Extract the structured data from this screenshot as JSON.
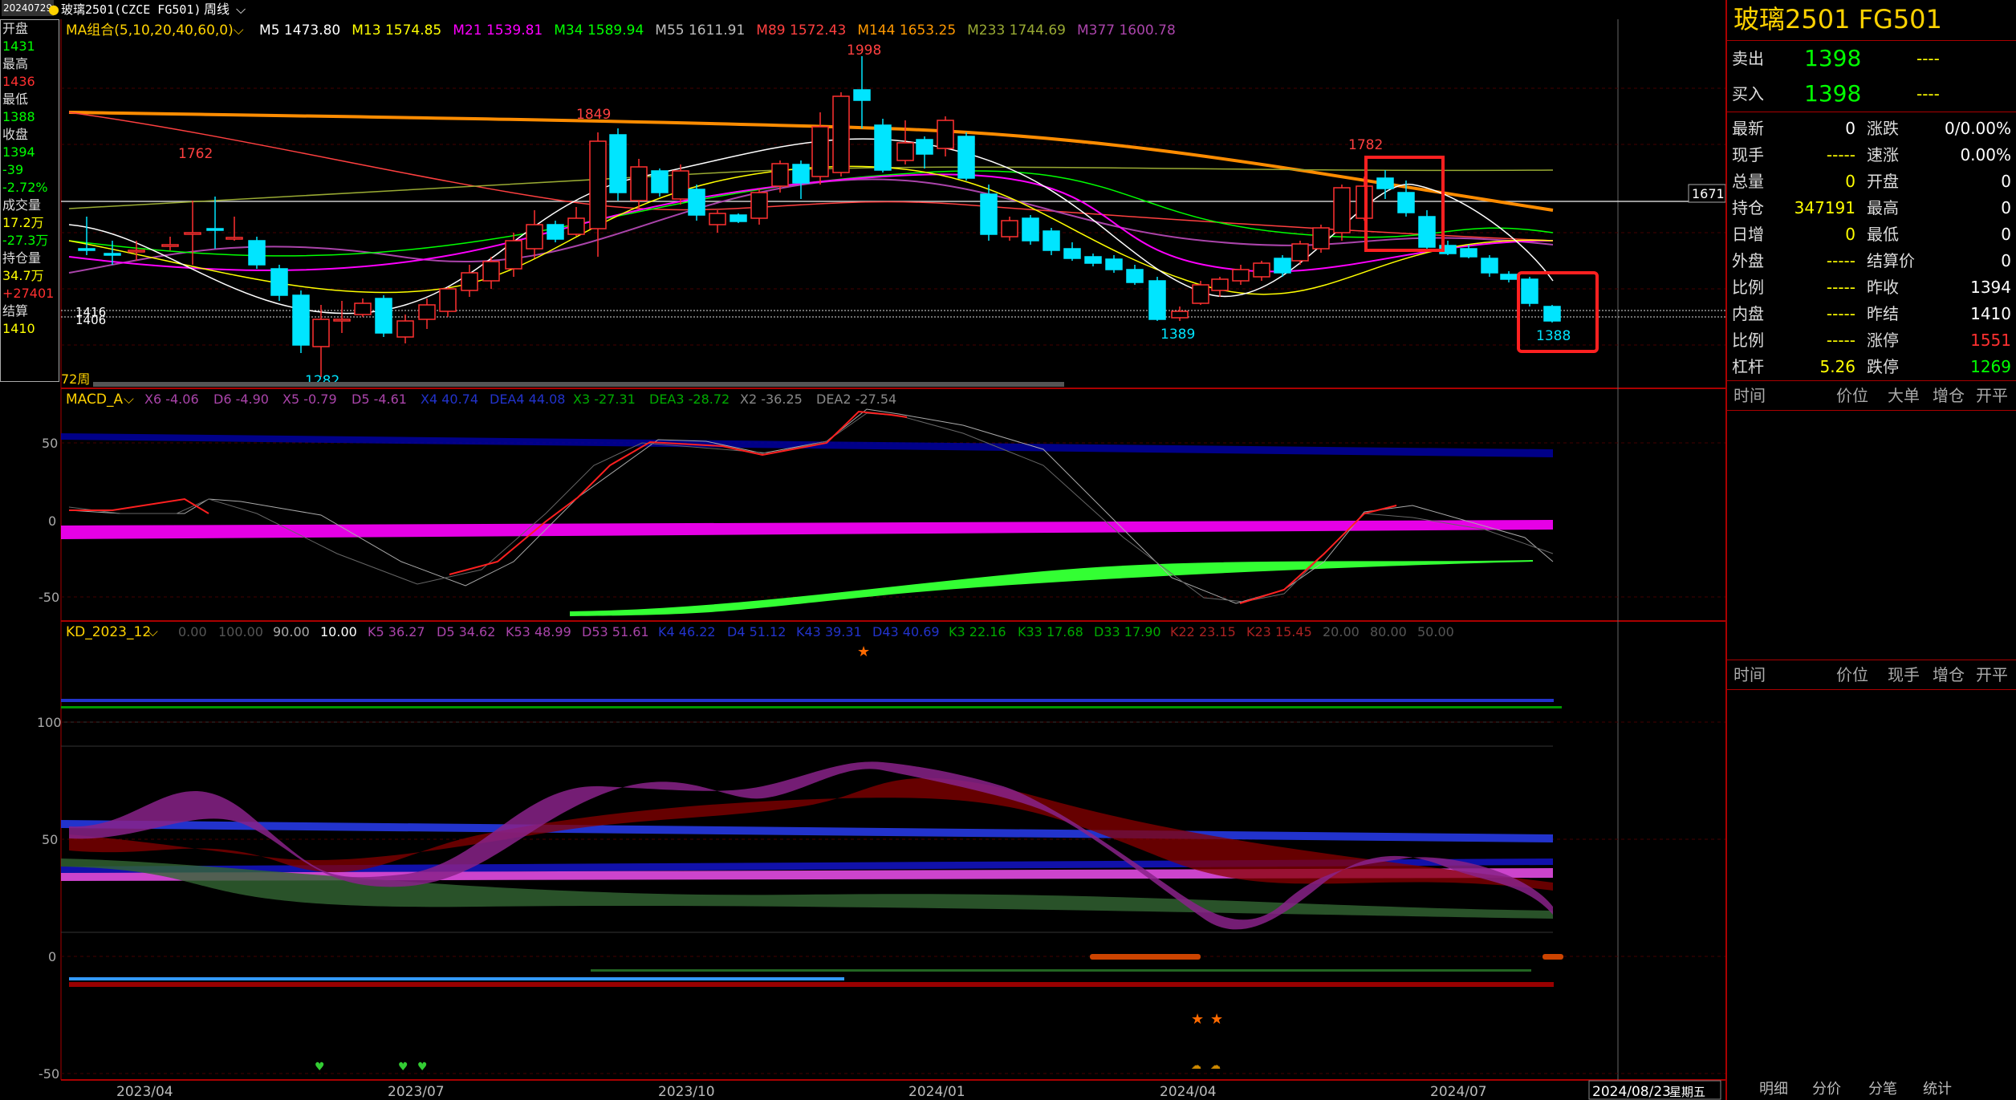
{
  "topbar": {
    "date_chip": "20240729",
    "contract": "玻璃2501(CZCE FG501)",
    "period": "周线",
    "ma_group": "MA组合(5,10,20,40,60,0)",
    "ma_values": [
      {
        "label": "M5 1473.80",
        "color": "#ffffff"
      },
      {
        "label": "M13 1574.85",
        "color": "#ffff00"
      },
      {
        "label": "M21 1539.81",
        "color": "#ff00ff"
      },
      {
        "label": "M34 1589.94",
        "color": "#00ff00"
      },
      {
        "label": "M55 1611.91",
        "color": "#bbbbbb"
      },
      {
        "label": "M89 1572.43",
        "color": "#ff4040"
      },
      {
        "label": "M144 1653.25",
        "color": "#ff9900"
      },
      {
        "label": "M233 1744.69",
        "color": "#99aa33"
      },
      {
        "label": "M377 1600.78",
        "color": "#aa44aa"
      }
    ]
  },
  "left_panel": [
    {
      "label": "开盘",
      "value": "1431",
      "color": "#00ff00"
    },
    {
      "label": "最高",
      "value": "1436",
      "color": "#ff3030"
    },
    {
      "label": "最低",
      "value": "1388",
      "color": "#00ff00"
    },
    {
      "label": "收盘",
      "value": "1394",
      "color": "#00ff00"
    },
    {
      "label": "",
      "value": "-39",
      "color": "#00ff00"
    },
    {
      "label": "",
      "value": "-2.72%",
      "color": "#00ff00"
    },
    {
      "label": "成交量",
      "value": "17.2万",
      "color": "#ffff00"
    },
    {
      "label": "",
      "value": "-27.3万",
      "color": "#00ff00"
    },
    {
      "label": "持仓量",
      "value": "34.7万",
      "color": "#ffff00"
    },
    {
      "label": "",
      "value": "+27401",
      "color": "#ff3030"
    },
    {
      "label": "结算",
      "value": "1410",
      "color": "#ffff00"
    }
  ],
  "price_chart": {
    "y_marker": "1671",
    "current_price_label_a": "1416",
    "current_price_label_b": "1406",
    "period_label": "72周",
    "annotations": [
      {
        "text": "1762",
        "color": "#ff4040"
      },
      {
        "text": "1849",
        "color": "#ff4040"
      },
      {
        "text": "1998",
        "color": "#ff4040"
      },
      {
        "text": "1782",
        "color": "#ff4040"
      },
      {
        "text": "1282",
        "color": "#00e5ff"
      },
      {
        "text": "1389",
        "color": "#00e5ff"
      },
      {
        "text": "1388",
        "color": "#00e5ff"
      }
    ]
  },
  "macd": {
    "title": "MACD_A",
    "legend": [
      {
        "label": "X6 -4.06",
        "color": "#aa44aa"
      },
      {
        "label": "D6 -4.90",
        "color": "#aa44aa"
      },
      {
        "label": "X5 -0.79",
        "color": "#aa44aa"
      },
      {
        "label": "D5 -4.61",
        "color": "#aa44aa"
      },
      {
        "label": "X4 40.74",
        "color": "#2233cc"
      },
      {
        "label": "DEA4 44.08",
        "color": "#2233cc"
      },
      {
        "label": "X3 -27.31",
        "color": "#00aa00"
      },
      {
        "label": "DEA3 -28.72",
        "color": "#00aa00"
      },
      {
        "label": "X2 -36.25",
        "color": "#888888"
      },
      {
        "label": "DEA2 -27.54",
        "color": "#888888"
      }
    ],
    "ticks": [
      "50",
      "0",
      "-50"
    ]
  },
  "kd": {
    "title": "KD_2023_12",
    "legend": [
      {
        "label": "0.00",
        "color": "#555555"
      },
      {
        "label": "100.00",
        "color": "#555555"
      },
      {
        "label": "90.00",
        "color": "#aaaaaa"
      },
      {
        "label": "10.00",
        "color": "#ffffff"
      },
      {
        "label": "K5 36.27",
        "color": "#aa44aa"
      },
      {
        "label": "D5 34.62",
        "color": "#aa44aa"
      },
      {
        "label": "K53 48.99",
        "color": "#aa44aa"
      },
      {
        "label": "D53 51.61",
        "color": "#aa44aa"
      },
      {
        "label": "K4 46.22",
        "color": "#2233cc"
      },
      {
        "label": "D4 51.12",
        "color": "#2233cc"
      },
      {
        "label": "K43 39.31",
        "color": "#2233cc"
      },
      {
        "label": "D43 40.69",
        "color": "#2233cc"
      },
      {
        "label": "K3 22.16",
        "color": "#00aa00"
      },
      {
        "label": "K33 17.68",
        "color": "#00aa00"
      },
      {
        "label": "D33 17.90",
        "color": "#00aa00"
      },
      {
        "label": "K22 23.15",
        "color": "#aa2222"
      },
      {
        "label": "K23 15.45",
        "color": "#aa2222"
      },
      {
        "label": "20.00",
        "color": "#555555"
      },
      {
        "label": "80.00",
        "color": "#555555"
      },
      {
        "label": "50.00",
        "color": "#555555"
      }
    ],
    "ticks": [
      "100",
      "50",
      "0",
      "-50"
    ]
  },
  "date_axis": {
    "labels": [
      "2023/04",
      "2023/07",
      "2023/10",
      "2024/01",
      "2024/04",
      "2024/07"
    ],
    "cursor_date": "2024/08/23",
    "cursor_weekday": "星期五"
  },
  "right_panel": {
    "title": "玻璃2501  FG501",
    "sell": {
      "label": "卖出",
      "price": "1398",
      "vol": "----"
    },
    "buy": {
      "label": "买入",
      "price": "1398",
      "vol": "----"
    },
    "rows": [
      {
        "l1": "最新",
        "v1": "0",
        "c1": "#ffffff",
        "l2": "涨跌",
        "v2": "0/0.00%",
        "c2": "#ffffff"
      },
      {
        "l1": "现手",
        "v1": "-----",
        "c1": "#ffff00",
        "l2": "速涨",
        "v2": "0.00%",
        "c2": "#ffffff"
      },
      {
        "l1": "总量",
        "v1": "0",
        "c1": "#ffff00",
        "l2": "开盘",
        "v2": "0",
        "c2": "#ffffff"
      },
      {
        "l1": "持仓",
        "v1": "347191",
        "c1": "#ffff00",
        "l2": "最高",
        "v2": "0",
        "c2": "#ffffff"
      },
      {
        "l1": "日增",
        "v1": "0",
        "c1": "#ffff00",
        "l2": "最低",
        "v2": "0",
        "c2": "#ffffff"
      },
      {
        "l1": "外盘",
        "v1": "-----",
        "c1": "#ffff00",
        "l2": "结算价",
        "v2": "0",
        "c2": "#ffffff"
      },
      {
        "l1": "比例",
        "v1": "-----",
        "c1": "#ffff00",
        "l2": "昨收",
        "v2": "1394",
        "c2": "#ffffff"
      },
      {
        "l1": "内盘",
        "v1": "-----",
        "c1": "#ffff00",
        "l2": "昨结",
        "v2": "1410",
        "c2": "#ffffff"
      },
      {
        "l1": "比例",
        "v1": "-----",
        "c1": "#ffff00",
        "l2": "涨停",
        "v2": "1551",
        "c2": "#ff3030"
      },
      {
        "l1": "杠杆",
        "v1": "5.26",
        "c1": "#ffff00",
        "l2": "跌停",
        "v2": "1269",
        "c2": "#00ff00"
      }
    ],
    "tick_header": [
      "时间",
      "价位",
      "大单",
      "增仓",
      "开平"
    ],
    "deal_header": [
      "时间",
      "价位",
      "现手",
      "增仓",
      "开平"
    ],
    "tabs": [
      "明细",
      "分价",
      "分笔",
      "统计"
    ]
  }
}
